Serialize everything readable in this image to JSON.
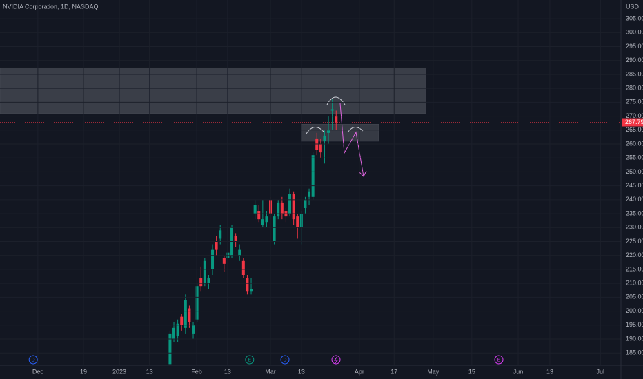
{
  "chart_data": {
    "type": "candlestick",
    "title": "NVIDIA Corporation, 1D, NASDAQ",
    "currency": "USD",
    "up_color": "#089981",
    "down_color": "#f23645",
    "x": [
      -26,
      -25,
      -24,
      -23,
      -22,
      -21,
      -20,
      -19,
      -18,
      -17,
      -16,
      -15,
      -14,
      -13,
      -12,
      -11,
      -10,
      -9,
      -8,
      -7,
      -6,
      -5,
      -4,
      -3,
      -2,
      -1,
      0,
      1,
      2,
      3,
      4,
      5,
      6,
      7,
      8,
      9,
      10,
      11,
      12,
      13,
      14,
      15,
      16,
      17
    ],
    "open": [
      181,
      190,
      191,
      198,
      194,
      201,
      192,
      197,
      212,
      210,
      210,
      215,
      225,
      226,
      219,
      219,
      220,
      227,
      220,
      218,
      212,
      207,
      235,
      236,
      231,
      232,
      240,
      225,
      234,
      239,
      236,
      235,
      242,
      234,
      230,
      237,
      241,
      241,
      262,
      260,
      261,
      264,
      272,
      270
    ],
    "high": [
      193,
      196,
      197,
      199,
      206,
      202,
      196,
      210,
      216,
      219,
      213,
      224,
      227,
      231,
      220,
      222,
      231,
      228,
      224,
      219,
      213,
      212,
      240,
      238,
      240,
      236,
      241,
      235,
      240,
      241,
      237,
      244,
      243,
      235,
      236,
      241,
      244,
      257,
      264,
      262,
      265,
      270,
      276,
      272
    ],
    "low": [
      181,
      189,
      189,
      193,
      192,
      194,
      190,
      196,
      207,
      209,
      208,
      213,
      220,
      224,
      214,
      215,
      219,
      223,
      218,
      212,
      206,
      206,
      233,
      232,
      230,
      230,
      233,
      224,
      233,
      233,
      232,
      234,
      231,
      226,
      224,
      235,
      238,
      240,
      256,
      255,
      253,
      260,
      265,
      265
    ],
    "close": [
      192,
      194,
      195.5,
      195,
      204,
      196,
      195,
      209,
      209,
      218,
      212,
      222,
      222,
      229,
      217,
      221,
      230,
      225,
      222,
      213,
      207,
      208,
      238,
      233,
      233,
      234,
      235,
      234,
      239,
      235,
      234,
      242,
      233,
      230,
      235,
      240,
      243,
      256,
      258,
      257,
      263,
      265,
      272.5,
      267.79
    ],
    "xlim": [
      -70,
      90.7
    ],
    "xticks": [
      {
        "value": -60.2,
        "label": "Dec"
      },
      {
        "value": -48.4,
        "label": "19"
      },
      {
        "value": -39.1,
        "label": "2023"
      },
      {
        "value": -31.3,
        "label": "13"
      },
      {
        "value": -19.1,
        "label": "Feb"
      },
      {
        "value": -11.1,
        "label": "13"
      },
      {
        "value": 0,
        "label": "Mar"
      },
      {
        "value": 8,
        "label": "13"
      },
      {
        "value": 23,
        "label": "Apr"
      },
      {
        "value": 32,
        "label": "17"
      },
      {
        "value": 42.1,
        "label": "May"
      },
      {
        "value": 52.1,
        "label": "15"
      },
      {
        "value": 64.1,
        "label": "Jun"
      },
      {
        "value": 72.3,
        "label": "13"
      },
      {
        "value": 85.4,
        "label": "Jul"
      }
    ],
    "ylim": [
      180.6,
      311.7
    ],
    "yticks": [
      {
        "value": 185,
        "label": "185.00"
      },
      {
        "value": 190,
        "label": "190.00"
      },
      {
        "value": 195,
        "label": "195.00"
      },
      {
        "value": 200,
        "label": "200.00"
      },
      {
        "value": 205,
        "label": "205.00"
      },
      {
        "value": 210,
        "label": "210.00"
      },
      {
        "value": 215,
        "label": "215.00"
      },
      {
        "value": 220,
        "label": "220.00"
      },
      {
        "value": 225,
        "label": "225.00"
      },
      {
        "value": 230,
        "label": "230.00"
      },
      {
        "value": 235,
        "label": "235.00"
      },
      {
        "value": 240,
        "label": "240.00"
      },
      {
        "value": 245,
        "label": "245.00"
      },
      {
        "value": 250,
        "label": "250.00"
      },
      {
        "value": 255,
        "label": "255.00"
      },
      {
        "value": 260,
        "label": "260.00"
      },
      {
        "value": 265,
        "label": "265.00"
      },
      {
        "value": 270,
        "label": "270.00"
      },
      {
        "value": 275,
        "label": "275.00"
      },
      {
        "value": 280,
        "label": "280.00"
      },
      {
        "value": 285,
        "label": "285.00"
      },
      {
        "value": 290,
        "label": "290.00"
      },
      {
        "value": 295,
        "label": "295.00"
      },
      {
        "value": 300,
        "label": "300.00"
      },
      {
        "value": 305,
        "label": "305.00"
      }
    ],
    "zones": [
      {
        "top": 287.4,
        "bottom": 270.9,
        "x_start": -70,
        "x_end": 40.2,
        "color": "#3a3e48"
      },
      {
        "top": 267.1,
        "bottom": 261,
        "x_start": 7.9,
        "x_end": 28,
        "color": "#363a44"
      }
    ],
    "events": [
      {
        "x": -61.4,
        "label": "D",
        "color": "#2962ff"
      },
      {
        "x": -5.4,
        "label": "E",
        "color": "#089981"
      },
      {
        "x": 3.75,
        "label": "D",
        "color": "#2962ff"
      },
      {
        "x": 59.1,
        "label": "E",
        "color": "#e040fb"
      }
    ]
  }
}
